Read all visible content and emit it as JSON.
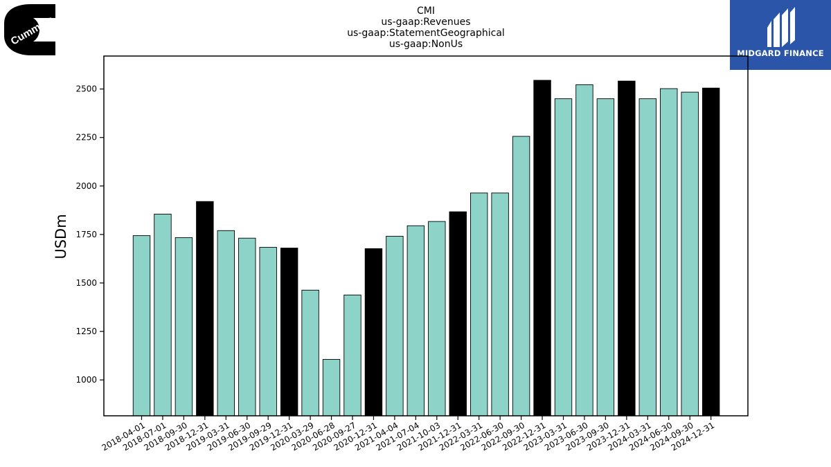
{
  "logos": {
    "left_text": "Cummins",
    "right_text": "MIDGARD FINANCE"
  },
  "chart_data": {
    "type": "bar",
    "title_lines": [
      "CMI",
      "us-gaap:Revenues",
      "us-gaap:StatementGeographical",
      "us-gaap:NonUs"
    ],
    "xlabel": "",
    "ylabel": "USDm",
    "ylim": [
      815,
      2670
    ],
    "yticks": [
      1000,
      1250,
      1500,
      1750,
      2000,
      2250,
      2500
    ],
    "categories": [
      "2018-04-01",
      "2018-07-01",
      "2018-09-30",
      "2018-12-31",
      "2019-03-31",
      "2019-06-30",
      "2019-09-29",
      "2019-12-31",
      "2020-03-29",
      "2020-06-28",
      "2020-09-27",
      "2020-12-31",
      "2021-04-04",
      "2021-07-04",
      "2021-10-03",
      "2021-12-31",
      "2022-03-31",
      "2022-06-30",
      "2022-09-30",
      "2022-12-31",
      "2023-03-31",
      "2023-06-30",
      "2023-09-30",
      "2023-12-31",
      "2024-03-31",
      "2024-06-30",
      "2024-09-30",
      "2024-12-31"
    ],
    "values": [
      1744,
      1855,
      1734,
      1920,
      1770,
      1731,
      1684,
      1680,
      1463,
      1106,
      1438,
      1677,
      1741,
      1795,
      1817,
      1867,
      1964,
      1964,
      2256,
      2545,
      2450,
      2522,
      2450,
      2541,
      2450,
      2502,
      2484,
      2505
    ],
    "year_end": [
      false,
      false,
      false,
      true,
      false,
      false,
      false,
      true,
      false,
      false,
      false,
      true,
      false,
      false,
      false,
      true,
      false,
      false,
      false,
      true,
      false,
      false,
      false,
      true,
      false,
      false,
      false,
      true
    ],
    "colors": {
      "quarter": "#8dd3c7",
      "year_end": "#000000",
      "edge": "#000000"
    },
    "grid": false,
    "legend": "none"
  }
}
